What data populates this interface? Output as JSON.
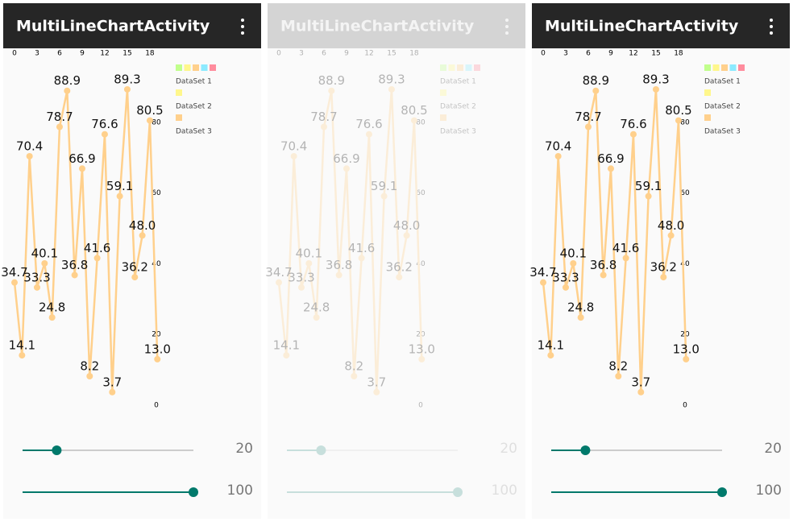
{
  "panels": [
    {
      "title": "MultiLineChartActivity",
      "faded": false
    },
    {
      "title": "MultiLineChartActivity",
      "faded": true
    },
    {
      "title": "MultiLineChartActivity",
      "faded": false
    }
  ],
  "chart_data": {
    "type": "line",
    "x": [
      0,
      1,
      2,
      3,
      4,
      5,
      6,
      7,
      8,
      9,
      10,
      11,
      12,
      13,
      14,
      15,
      16,
      17,
      18,
      19
    ],
    "series": [
      {
        "name": "DataSet 3",
        "color": "#ffd08c",
        "values": [
          34.7,
          14.1,
          70.4,
          33.3,
          40.1,
          24.8,
          78.7,
          88.9,
          36.8,
          66.9,
          8.2,
          41.6,
          76.6,
          3.7,
          59.1,
          89.3,
          36.2,
          48.0,
          80.5,
          13.0
        ],
        "value_labels": [
          "34.7",
          "14.1",
          "70.4",
          "33.3",
          "40.1",
          "24.8",
          "78.7",
          "88.9",
          "36.8",
          "66.9",
          "8.2",
          "41.6",
          "76.6",
          "3.7",
          "59.1",
          "89.3",
          "36.2",
          "48.0",
          "80.5",
          "13.0"
        ]
      }
    ],
    "xlim": [
      0,
      19
    ],
    "xticks": [
      0,
      3,
      6,
      9,
      12,
      15,
      18
    ],
    "ylim": [
      0,
      100
    ],
    "yticks": [
      0,
      20,
      40,
      60,
      80
    ],
    "legend": [
      {
        "name": "DataSet 1",
        "colors": [
          "#c1ff8c",
          "#fff78c",
          "#ffd08c",
          "#8ceaff",
          "#ff8c9d"
        ]
      },
      {
        "name": "DataSet 2",
        "colors": [
          "#fff78c"
        ]
      },
      {
        "name": "DataSet 3",
        "colors": [
          "#ffd08c"
        ]
      }
    ]
  },
  "sliders": [
    {
      "value": 20,
      "max": 100
    },
    {
      "value": 100,
      "max": 100
    }
  ]
}
